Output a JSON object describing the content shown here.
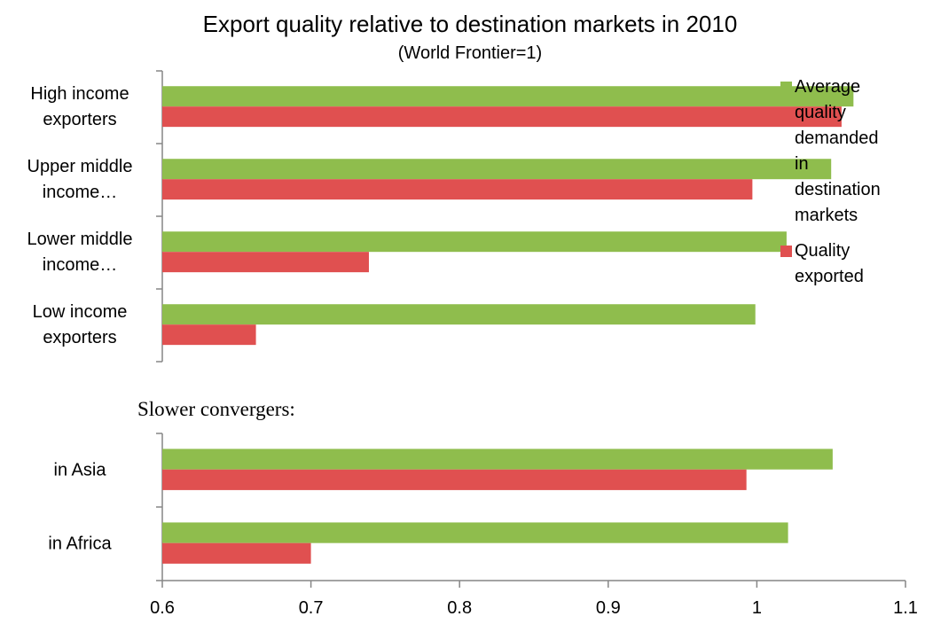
{
  "chart_data": [
    {
      "type": "bar",
      "orientation": "horizontal",
      "title": "Export quality relative to destination markets in 2010",
      "subtitle": "(World Frontier=1)",
      "categories": [
        "High income exporters",
        "Upper middle income…",
        "Lower middle income…",
        "Low income exporters"
      ],
      "series": [
        {
          "name": "Average quality demanded in destination markets",
          "color": "#8fbd4d",
          "values": [
            1.065,
            1.05,
            1.02,
            0.999
          ]
        },
        {
          "name": "Quality exported",
          "color": "#e05050",
          "values": [
            1.057,
            0.997,
            0.739,
            0.663
          ]
        }
      ],
      "xlim": [
        0.6,
        1.1
      ],
      "legend": "right"
    },
    {
      "type": "bar",
      "orientation": "horizontal",
      "title": "Slower convergers:",
      "categories": [
        "in Asia",
        "in Africa"
      ],
      "series": [
        {
          "color": "#8fbd4d",
          "values": [
            1.051,
            1.021
          ]
        },
        {
          "color": "#e05050",
          "values": [
            0.993,
            0.7
          ]
        }
      ],
      "xlim": [
        0.6,
        1.1
      ],
      "xticks": [
        0.6,
        0.7,
        0.8,
        0.9,
        1,
        1.1
      ]
    }
  ]
}
